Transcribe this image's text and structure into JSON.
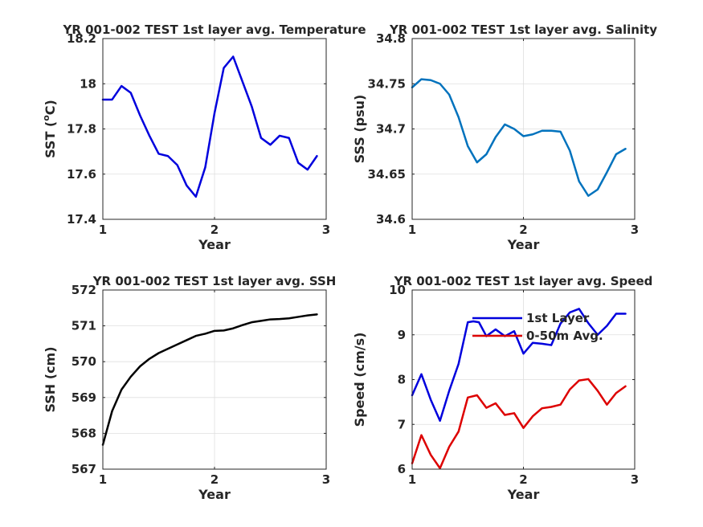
{
  "figure": {
    "background": "#ffffff",
    "axis_color": "#262626",
    "grid_color": "#dfdfdf"
  },
  "chart_data": [
    {
      "id": "sst",
      "type": "line",
      "title": "YR 001-002 TEST 1st layer avg. Temperature",
      "xlabel": "Year",
      "ylabel": "SST (°C)",
      "ylabel_parts": [
        "SST (",
        "o",
        "C)"
      ],
      "xlim": [
        1,
        3
      ],
      "ylim": [
        17.4,
        18.2
      ],
      "xticks": [
        1,
        2,
        3
      ],
      "xtick_labels": [
        "1",
        "2",
        "3"
      ],
      "yticks": [
        17.4,
        17.6,
        17.8,
        18,
        18.2
      ],
      "ytick_labels": [
        "17.4",
        "17.6",
        "17.8",
        "18",
        "18.2"
      ],
      "grid": true,
      "series": [
        {
          "color": "#0000dd",
          "x": [
            1.0,
            1.083,
            1.167,
            1.25,
            1.333,
            1.417,
            1.5,
            1.583,
            1.667,
            1.75,
            1.833,
            1.917,
            2.0,
            2.083,
            2.167,
            2.25,
            2.333,
            2.417,
            2.5,
            2.583,
            2.667,
            2.75,
            2.833,
            2.917
          ],
          "y": [
            17.93,
            17.93,
            17.99,
            17.96,
            17.86,
            17.77,
            17.69,
            17.68,
            17.64,
            17.55,
            17.5,
            17.63,
            17.87,
            18.07,
            18.12,
            18.01,
            17.9,
            17.76,
            17.73,
            17.77,
            17.76,
            17.65,
            17.62,
            17.68
          ]
        }
      ]
    },
    {
      "id": "sss",
      "type": "line",
      "title": "YR 001-002 TEST 1st layer avg. Salinity",
      "xlabel": "Year",
      "ylabel": "SSS (psu)",
      "xlim": [
        1,
        3
      ],
      "ylim": [
        34.6,
        34.8
      ],
      "xticks": [
        1,
        2,
        3
      ],
      "xtick_labels": [
        "1",
        "2",
        "3"
      ],
      "yticks": [
        34.6,
        34.65,
        34.7,
        34.75,
        34.8
      ],
      "ytick_labels": [
        "34.6",
        "34.65",
        "34.7",
        "34.75",
        "34.8"
      ],
      "grid": true,
      "series": [
        {
          "color": "#0072bd",
          "x": [
            1.0,
            1.083,
            1.167,
            1.25,
            1.333,
            1.417,
            1.5,
            1.583,
            1.667,
            1.75,
            1.833,
            1.917,
            2.0,
            2.083,
            2.167,
            2.25,
            2.333,
            2.417,
            2.5,
            2.583,
            2.667,
            2.75,
            2.833,
            2.917
          ],
          "y": [
            34.746,
            34.755,
            34.754,
            34.75,
            34.738,
            34.713,
            34.681,
            34.663,
            34.672,
            34.691,
            34.705,
            34.7,
            34.692,
            34.694,
            34.698,
            34.698,
            34.697,
            34.676,
            34.642,
            34.626,
            34.633,
            34.652,
            34.672,
            34.678
          ]
        }
      ]
    },
    {
      "id": "ssh",
      "type": "line",
      "title": "YR 001-002 TEST 1st layer avg. SSH",
      "xlabel": "Year",
      "ylabel": "SSH (cm)",
      "xlim": [
        1,
        3
      ],
      "ylim": [
        567,
        572
      ],
      "xticks": [
        1,
        2,
        3
      ],
      "xtick_labels": [
        "1",
        "2",
        "3"
      ],
      "yticks": [
        567,
        568,
        569,
        570,
        571,
        572
      ],
      "ytick_labels": [
        "567",
        "568",
        "569",
        "570",
        "571",
        "572"
      ],
      "grid": true,
      "series": [
        {
          "color": "#000000",
          "x": [
            1.0,
            1.083,
            1.167,
            1.25,
            1.333,
            1.417,
            1.5,
            1.583,
            1.667,
            1.75,
            1.833,
            1.917,
            2.0,
            2.083,
            2.167,
            2.25,
            2.333,
            2.417,
            2.5,
            2.583,
            2.667,
            2.75,
            2.833,
            2.917
          ],
          "y": [
            567.68,
            568.62,
            569.22,
            569.58,
            569.87,
            570.08,
            570.24,
            570.36,
            570.48,
            570.6,
            570.72,
            570.78,
            570.86,
            570.87,
            570.93,
            571.02,
            571.1,
            571.14,
            571.18,
            571.19,
            571.21,
            571.25,
            571.29,
            571.32
          ]
        }
      ]
    },
    {
      "id": "speed",
      "type": "line",
      "title": "YR 001-002 TEST 1st layer avg. Speed",
      "xlabel": "Year",
      "ylabel": "Speed (cm/s)",
      "xlim": [
        1,
        3
      ],
      "ylim": [
        6,
        10
      ],
      "xticks": [
        1,
        2,
        3
      ],
      "xtick_labels": [
        "1",
        "2",
        "3"
      ],
      "yticks": [
        6,
        7,
        8,
        9,
        10
      ],
      "ytick_labels": [
        "6",
        "7",
        "8",
        "9",
        "10"
      ],
      "grid": true,
      "legend": "top-right",
      "series": [
        {
          "name": "1st Layer",
          "color": "#0000dd",
          "x": [
            1.0,
            1.083,
            1.167,
            1.25,
            1.333,
            1.417,
            1.5,
            1.55,
            1.6,
            1.667,
            1.75,
            1.833,
            1.917,
            2.0,
            2.083,
            2.167,
            2.25,
            2.333,
            2.417,
            2.5,
            2.583,
            2.667,
            2.75,
            2.833,
            2.917
          ],
          "y": [
            7.65,
            8.12,
            7.55,
            7.08,
            7.75,
            8.35,
            9.28,
            9.3,
            9.28,
            8.97,
            9.12,
            8.97,
            9.08,
            8.58,
            8.82,
            8.8,
            8.77,
            9.25,
            9.5,
            9.58,
            9.26,
            9.0,
            9.2,
            9.47,
            9.47
          ]
        },
        {
          "name": "0-50m Avg.",
          "color": "#dd0000",
          "x": [
            1.0,
            1.083,
            1.167,
            1.25,
            1.333,
            1.417,
            1.5,
            1.583,
            1.667,
            1.75,
            1.833,
            1.917,
            2.0,
            2.083,
            2.167,
            2.25,
            2.333,
            2.417,
            2.5,
            2.583,
            2.667,
            2.75,
            2.833,
            2.917
          ],
          "y": [
            6.13,
            6.76,
            6.32,
            6.02,
            6.5,
            6.84,
            7.6,
            7.65,
            7.37,
            7.47,
            7.21,
            7.25,
            6.92,
            7.18,
            7.36,
            7.39,
            7.44,
            7.78,
            7.98,
            8.01,
            7.75,
            7.44,
            7.7,
            7.85
          ]
        }
      ]
    }
  ]
}
